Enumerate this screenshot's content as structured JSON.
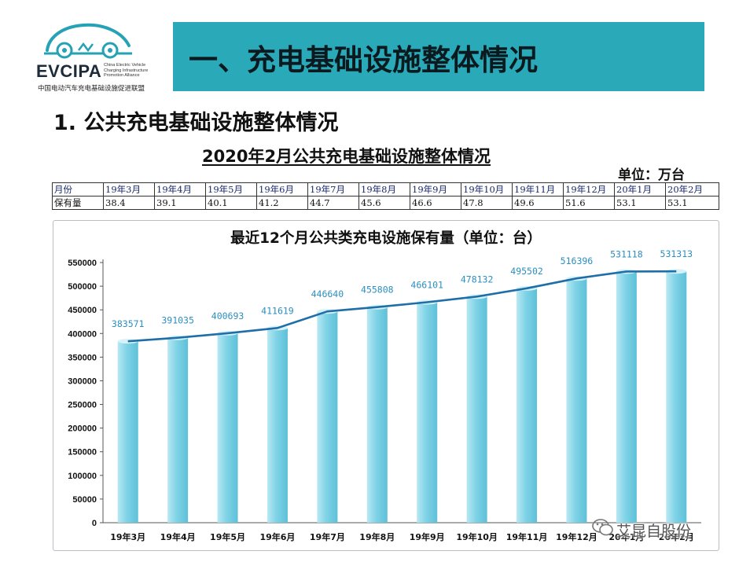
{
  "logo": {
    "name": "EVCIPA",
    "english_lines": [
      "China Electric Vehicle",
      "Charging Infrastructure",
      "Promotion Alliance"
    ],
    "chinese_name": "中国电动汽车充电基础设施促进联盟",
    "color": "#25a2b4"
  },
  "header": {
    "title": "一、充电基础设施整体情况"
  },
  "section": {
    "heading": "1. 公共充电基础设施整体情况"
  },
  "summary_table": {
    "title": "2020年2月公共充电基础设施整体情况",
    "unit": "单位：万台",
    "row_labels": [
      "月份",
      "保有量"
    ],
    "months": [
      "19年3月",
      "19年4月",
      "19年5月",
      "19年6月",
      "19年7月",
      "19年8月",
      "19年9月",
      "19年10月",
      "19年11月",
      "19年12月",
      "20年1月",
      "20年2月"
    ],
    "values": [
      "38.4",
      "39.1",
      "40.1",
      "41.2",
      "44.7",
      "45.6",
      "46.6",
      "47.8",
      "49.6",
      "51.6",
      "53.1",
      "53.1"
    ]
  },
  "chart_data": {
    "type": "bar",
    "title": "最近12个月公共类充电设施保有量（单位：台）",
    "xlabel": "",
    "ylabel": "",
    "categories": [
      "19年3月",
      "19年4月",
      "19年5月",
      "19年6月",
      "19年7月",
      "19年8月",
      "19年9月",
      "19年10月",
      "19年11月",
      "19年12月",
      "20年1月",
      "20年2月"
    ],
    "values": [
      383571,
      391035,
      400693,
      411619,
      446640,
      455808,
      466101,
      478132,
      495502,
      516396,
      531118,
      531313
    ],
    "ylim": [
      0,
      550000
    ],
    "yticks": [
      "0",
      "50000",
      "100000",
      "150000",
      "200000",
      "250000",
      "300000",
      "350000",
      "400000",
      "450000",
      "500000",
      "550000"
    ],
    "trend_line": true,
    "grid": false,
    "legend": "none",
    "bar_color": "#7fd3e6",
    "line_color": "#1f6ea8",
    "label_color": "#2c8fc0"
  },
  "watermark": {
    "text": "艾昆自股份"
  }
}
